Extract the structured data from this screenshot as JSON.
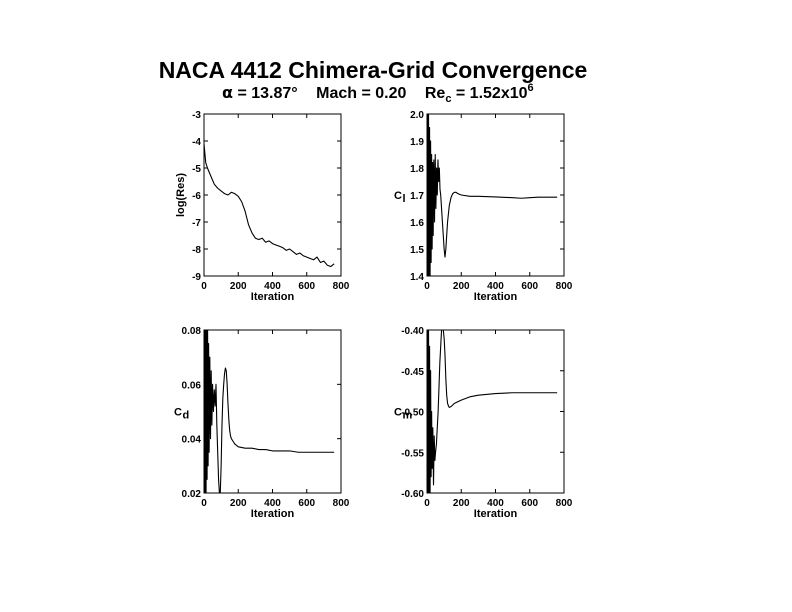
{
  "title": "NACA 4412 Chimera-Grid Convergence",
  "subtitle": {
    "alpha_symbol": "α",
    "alpha_text": " = 13.87°",
    "mach_text": "Mach = 0.20",
    "re_text": "Re",
    "re_sub": "c",
    "re_value": " = 1.52x10",
    "re_exp": "6"
  },
  "chart_data": [
    {
      "type": "line",
      "title": "",
      "xlabel": "Iteration",
      "ylabel": "log(Res)",
      "xlim": [
        0,
        800
      ],
      "ylim": [
        -9,
        -3
      ],
      "xticks": [
        0,
        200,
        400,
        600,
        800
      ],
      "yticks": [
        -9,
        -8,
        -7,
        -6,
        -5,
        -4,
        -3
      ],
      "xtick_labels": [
        "0",
        "200",
        "400",
        "600",
        "800"
      ],
      "ytick_labels": [
        "-9",
        "-8",
        "-7",
        "-6",
        "-5",
        "-4",
        "-3"
      ],
      "series": [
        {
          "x": [
            0,
            10,
            20,
            40,
            60,
            80,
            100,
            120,
            140,
            160,
            180,
            200,
            220,
            240,
            260,
            280,
            300,
            320,
            340,
            360,
            380,
            400,
            420,
            440,
            460,
            480,
            500,
            520,
            540,
            560,
            580,
            600,
            620,
            640,
            660,
            680,
            700,
            720,
            740,
            760
          ],
          "y": [
            -4.1,
            -4.8,
            -5.0,
            -5.3,
            -5.6,
            -5.75,
            -5.85,
            -5.95,
            -6.0,
            -5.9,
            -5.95,
            -6.05,
            -6.25,
            -6.6,
            -7.1,
            -7.4,
            -7.6,
            -7.65,
            -7.6,
            -7.75,
            -7.7,
            -7.8,
            -7.85,
            -7.9,
            -7.95,
            -8.05,
            -8.0,
            -8.1,
            -8.2,
            -8.15,
            -8.25,
            -8.3,
            -8.35,
            -8.4,
            -8.3,
            -8.5,
            -8.45,
            -8.6,
            -8.65,
            -8.55
          ]
        }
      ]
    },
    {
      "type": "line",
      "title": "",
      "xlabel": "Iteration",
      "ylabel": "C",
      "ylabel_sub": "l",
      "xlim": [
        0,
        800
      ],
      "ylim": [
        1.4,
        2.0
      ],
      "xticks": [
        0,
        200,
        400,
        600,
        800
      ],
      "yticks": [
        1.4,
        1.5,
        1.6,
        1.7,
        1.8,
        1.9,
        2.0
      ],
      "xtick_labels": [
        "0",
        "200",
        "400",
        "600",
        "800"
      ],
      "ytick_labels": [
        "1.4",
        "1.5",
        "1.6",
        "1.7",
        "1.8",
        "1.9",
        "2.0"
      ],
      "series": [
        {
          "x": [
            0,
            3,
            6,
            9,
            12,
            15,
            18,
            21,
            24,
            27,
            30,
            33,
            36,
            40,
            44,
            48,
            52,
            56,
            60,
            64,
            68,
            72,
            76,
            80,
            85,
            90,
            95,
            100,
            105,
            110,
            115,
            120,
            130,
            140,
            150,
            160,
            170,
            180,
            200,
            250,
            300,
            400,
            500,
            550,
            600,
            650,
            700,
            760
          ],
          "y": [
            1.4,
            2.0,
            1.4,
            2.0,
            1.4,
            1.95,
            1.4,
            1.9,
            1.45,
            1.85,
            1.5,
            1.82,
            1.55,
            1.83,
            1.6,
            1.85,
            1.65,
            1.8,
            1.7,
            1.83,
            1.75,
            1.8,
            1.72,
            1.7,
            1.65,
            1.6,
            1.55,
            1.5,
            1.47,
            1.5,
            1.55,
            1.6,
            1.66,
            1.69,
            1.705,
            1.71,
            1.71,
            1.705,
            1.7,
            1.695,
            1.695,
            1.693,
            1.69,
            1.688,
            1.69,
            1.692,
            1.692,
            1.692
          ]
        }
      ]
    },
    {
      "type": "line",
      "title": "",
      "xlabel": "Iteration",
      "ylabel": "C",
      "ylabel_sub": "d",
      "xlim": [
        0,
        800
      ],
      "ylim": [
        0.02,
        0.08
      ],
      "xticks": [
        0,
        200,
        400,
        600,
        800
      ],
      "yticks": [
        0.02,
        0.04,
        0.06,
        0.08
      ],
      "xtick_labels": [
        "0",
        "200",
        "400",
        "600",
        "800"
      ],
      "ytick_labels": [
        "0.02",
        "0.04",
        "0.06",
        "0.08"
      ],
      "series": [
        {
          "x": [
            0,
            3,
            6,
            9,
            12,
            15,
            18,
            21,
            24,
            27,
            30,
            34,
            38,
            42,
            46,
            50,
            55,
            60,
            65,
            70,
            75,
            80,
            85,
            90,
            95,
            100,
            105,
            110,
            115,
            120,
            125,
            130,
            135,
            140,
            145,
            150,
            155,
            160,
            170,
            180,
            200,
            240,
            280,
            320,
            360,
            400,
            450,
            500,
            550,
            600,
            650,
            700,
            760
          ],
          "y": [
            0.02,
            0.08,
            0.02,
            0.08,
            0.02,
            0.08,
            0.025,
            0.08,
            0.03,
            0.075,
            0.035,
            0.07,
            0.04,
            0.065,
            0.045,
            0.06,
            0.05,
            0.058,
            0.052,
            0.06,
            0.045,
            0.035,
            0.025,
            0.02,
            0.02,
            0.03,
            0.045,
            0.055,
            0.06,
            0.064,
            0.066,
            0.065,
            0.06,
            0.053,
            0.047,
            0.043,
            0.041,
            0.04,
            0.039,
            0.038,
            0.037,
            0.0365,
            0.0365,
            0.036,
            0.036,
            0.0355,
            0.0355,
            0.0355,
            0.035,
            0.035,
            0.035,
            0.035,
            0.035
          ]
        }
      ]
    },
    {
      "type": "line",
      "title": "",
      "xlabel": "Iteration",
      "ylabel": "C",
      "ylabel_sub": "m",
      "xlim": [
        0,
        800
      ],
      "ylim": [
        -0.6,
        -0.4
      ],
      "xticks": [
        0,
        200,
        400,
        600,
        800
      ],
      "yticks": [
        -0.6,
        -0.55,
        -0.5,
        -0.45,
        -0.4
      ],
      "xtick_labels": [
        "0",
        "200",
        "400",
        "600",
        "800"
      ],
      "ytick_labels": [
        "-0.60",
        "-0.55",
        "-0.50",
        "-0.45",
        "-0.40"
      ],
      "series": [
        {
          "x": [
            0,
            3,
            6,
            9,
            12,
            15,
            18,
            21,
            24,
            27,
            30,
            34,
            38,
            42,
            46,
            50,
            55,
            60,
            65,
            70,
            75,
            80,
            85,
            90,
            95,
            100,
            105,
            110,
            115,
            120,
            125,
            130,
            140,
            150,
            160,
            180,
            200,
            250,
            300,
            400,
            500,
            600,
            700,
            760
          ],
          "y": [
            -0.6,
            -0.4,
            -0.6,
            -0.4,
            -0.6,
            -0.42,
            -0.6,
            -0.45,
            -0.58,
            -0.5,
            -0.57,
            -0.52,
            -0.59,
            -0.53,
            -0.56,
            -0.55,
            -0.54,
            -0.52,
            -0.5,
            -0.47,
            -0.44,
            -0.42,
            -0.4,
            -0.395,
            -0.4,
            -0.41,
            -0.43,
            -0.46,
            -0.48,
            -0.49,
            -0.493,
            -0.495,
            -0.494,
            -0.492,
            -0.49,
            -0.488,
            -0.486,
            -0.482,
            -0.48,
            -0.478,
            -0.477,
            -0.477,
            -0.477,
            -0.477
          ]
        }
      ]
    }
  ]
}
